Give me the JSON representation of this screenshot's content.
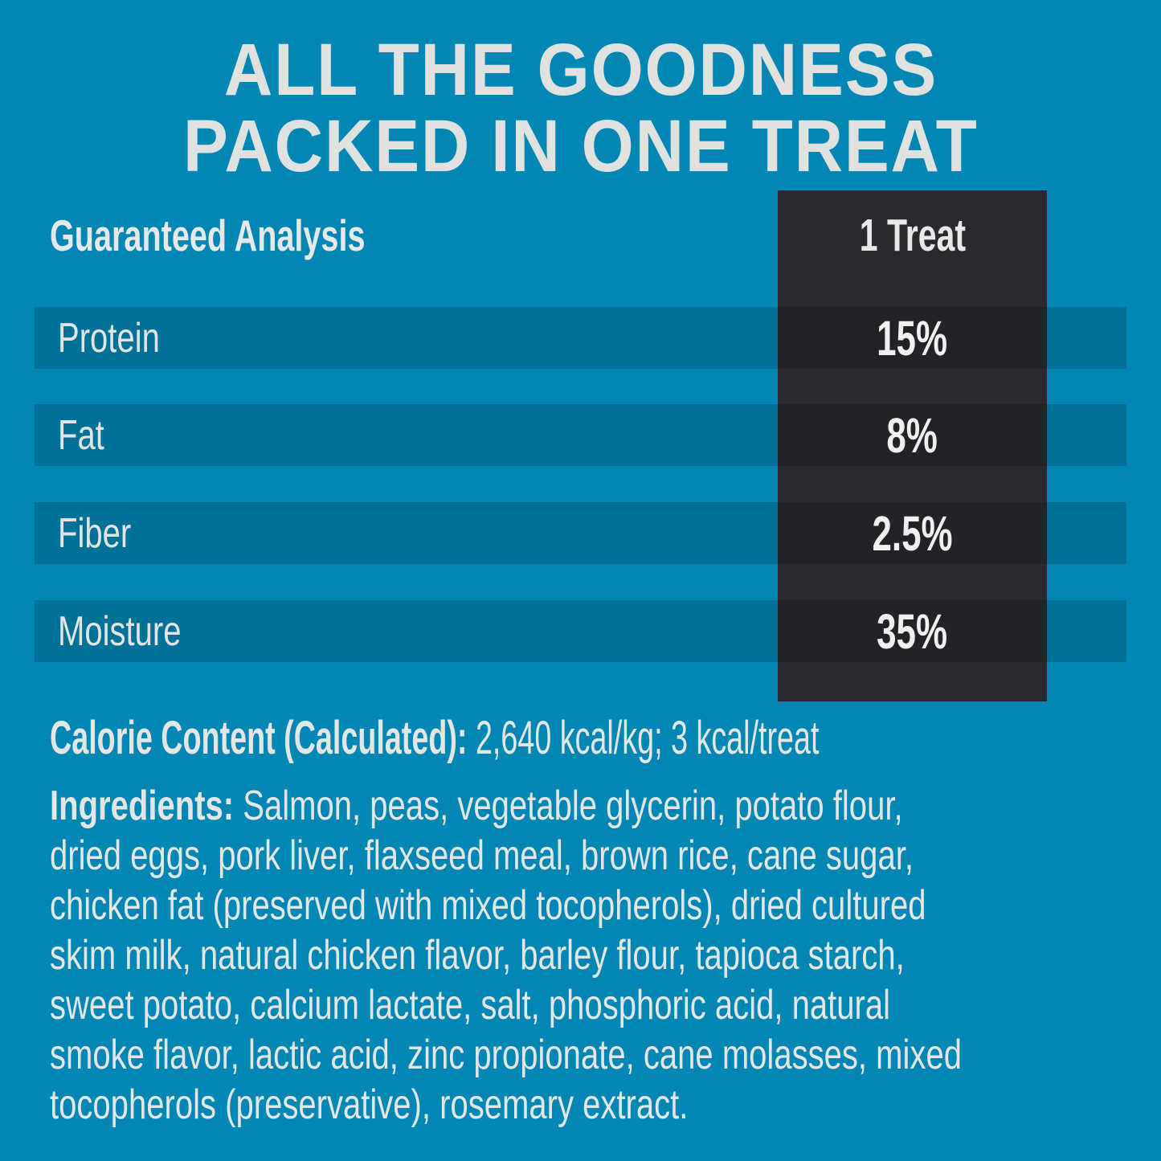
{
  "title": {
    "line1": "ALL THE GOODNESS",
    "line2": "PACKED IN ONE TREAT"
  },
  "table": {
    "header": {
      "label": "Guaranteed Analysis",
      "value_col": "1 Treat"
    },
    "rows": [
      {
        "label": "Protein",
        "value": "15%"
      },
      {
        "label": "Fat",
        "value": "8%"
      },
      {
        "label": "Fiber",
        "value": "2.5%"
      },
      {
        "label": "Moisture",
        "value": "35%"
      }
    ]
  },
  "calorie": {
    "label": "Calorie Content (Calculated):",
    "value": "2,640 kcal/kg; 3 kcal/treat"
  },
  "ingredients": {
    "label": "Ingredients:",
    "lines": [
      "Salmon, peas, vegetable glycerin, potato flour,",
      "dried eggs, pork liver, flaxseed meal, brown rice, cane sugar,",
      "chicken fat (preserved with mixed tocopherols), dried cultured",
      "skim milk, natural chicken flavor, barley flour, tapioca starch,",
      "sweet potato, calcium lactate, salt, phosphoric acid, natural",
      "smoke flavor, lactic acid, zinc propionate, cane molasses, mixed",
      "tocopherols (preservative), rosemary extract."
    ]
  },
  "colors": {
    "background": "#0287B4",
    "row_stripe_overlay": "rgba(0,0,0,0.16)",
    "value_panel": "#282A2F",
    "heading_text": "#DFE2DF",
    "body_text": "#E4E6E4"
  }
}
